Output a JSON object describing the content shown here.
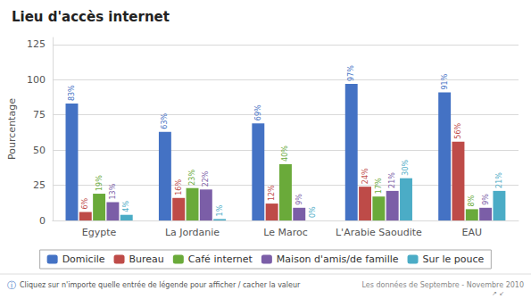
{
  "chart_data": {
    "type": "bar",
    "title": "Lieu d'accès internet",
    "ylabel": "Pourcentage",
    "categories": [
      "Egypte",
      "La Jordanie",
      "Le Maroc",
      "L'Arabie Saoudite",
      "EAU"
    ],
    "series": [
      {
        "name": "Domicile",
        "color": "#4472c4",
        "values": [
          83,
          63,
          69,
          97,
          91
        ],
        "value_labels": [
          "83%",
          "63%",
          "69%",
          "97%",
          "91%"
        ]
      },
      {
        "name": "Bureau",
        "color": "#be4b48",
        "values": [
          6,
          16,
          12,
          24,
          56
        ],
        "value_labels": [
          "6%",
          "16%",
          "12%",
          "24%",
          "56%"
        ]
      },
      {
        "name": "Café internet",
        "color": "#6aaa3a",
        "values": [
          19,
          23,
          40,
          17,
          8
        ],
        "value_labels": [
          "19%",
          "23%",
          "40%",
          "17%",
          "8%"
        ]
      },
      {
        "name": "Maison d'amis/de famille",
        "color": "#7b5ea7",
        "values": [
          13,
          22,
          9,
          21,
          9
        ],
        "value_labels": [
          "13%",
          "22%",
          "9%",
          "21%",
          "9%"
        ]
      },
      {
        "name": "Sur le pouce",
        "color": "#4bacc6",
        "values": [
          4,
          1,
          0,
          30,
          21
        ],
        "value_labels": [
          "4%",
          "1%",
          "0%",
          "30%",
          "21%"
        ]
      }
    ],
    "ylim": [
      0,
      130
    ],
    "yticks": [
      0,
      25,
      50,
      75,
      100,
      125
    ],
    "grid": true,
    "legend": "bottom",
    "data_labels": true,
    "annotations": [
      "ⓘ",
      "Cliquez sur n'importe quelle entrée de légende pour afficher / cacher la valeur",
      "Les données de Septembre - Novembre 2010",
      "↗ ↙"
    ]
  }
}
